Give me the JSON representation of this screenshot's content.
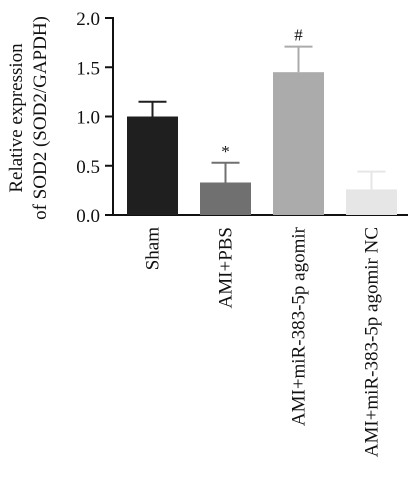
{
  "chart_data": {
    "type": "bar",
    "categories": [
      "Sham",
      "AMI+PBS",
      "AMI+miR-383-5p agomir",
      "AMI+miR-383-5p agomir NC"
    ],
    "values": [
      1.0,
      0.33,
      1.45,
      0.26
    ],
    "errors": [
      0.15,
      0.2,
      0.26,
      0.18
    ],
    "annotations": [
      "",
      "*",
      "#",
      ""
    ],
    "colors": [
      "#1f1f1f",
      "#707070",
      "#ababab",
      "#e6e6e6"
    ],
    "error_colors": [
      "#1f1f1f",
      "#707070",
      "#ababab",
      "#e6e6e6"
    ],
    "ylabel_line1": "Relative expression",
    "ylabel_line2": "of SOD2 (SOD2/GAPDH)",
    "ylim": [
      0,
      2.0
    ],
    "yticks": [
      "0.0",
      "0.5",
      "1.0",
      "1.5",
      "2.0"
    ],
    "grid": false
  }
}
